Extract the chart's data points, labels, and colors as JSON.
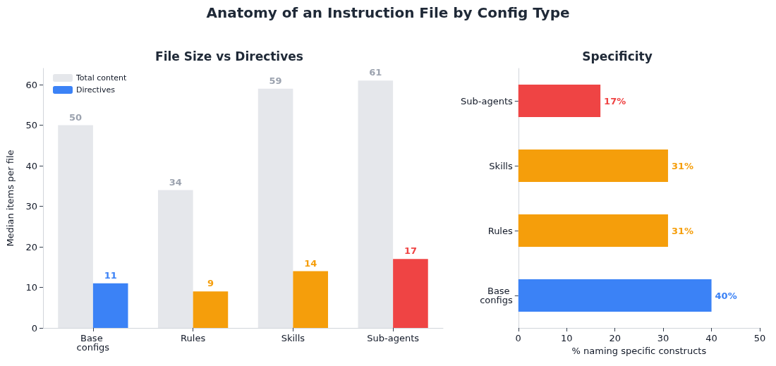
{
  "chart_data": [
    {
      "type": "bar",
      "title": "Anatomy of an Instruction File by Config Type",
      "subtitle": "File Size vs Directives",
      "ylabel": "Median items per file",
      "categories": [
        "Base configs",
        "Rules",
        "Skills",
        "Sub-agents"
      ],
      "series": [
        {
          "name": "Total content",
          "color": "#e5e7eb",
          "values": [
            50,
            34,
            59,
            61
          ]
        },
        {
          "name": "Directives",
          "color": "#3b82f6",
          "colors": [
            "#3b82f6",
            "#f59e0b",
            "#f59e0b",
            "#ef4444"
          ],
          "values": [
            11,
            9,
            14,
            17
          ]
        }
      ],
      "ylim": [
        0,
        64
      ],
      "yticks": [
        0,
        10,
        20,
        30,
        40,
        50,
        60
      ],
      "grid": false,
      "legend": "top left",
      "data_labels": true
    },
    {
      "type": "bar",
      "orientation": "horizontal",
      "title": "Specificity",
      "xlabel": "% naming specific constructs",
      "categories": [
        "Sub-agents",
        "Skills",
        "Rules",
        "Base configs"
      ],
      "values": [
        17,
        31,
        31,
        40
      ],
      "colors": [
        "#ef4444",
        "#f59e0b",
        "#f59e0b",
        "#3b82f6"
      ],
      "value_labels": [
        "17%",
        "31%",
        "31%",
        "40%"
      ],
      "xlim": [
        0,
        50
      ],
      "xticks": [
        0,
        10,
        20,
        30,
        40,
        50
      ],
      "grid": false
    }
  ]
}
